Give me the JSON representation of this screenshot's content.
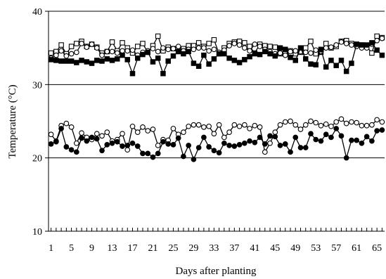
{
  "chart_data": {
    "type": "line",
    "title": "",
    "xlabel": "Days after planting",
    "ylabel": "Temperature (°C)",
    "xlim": [
      0.5,
      66.5
    ],
    "ylim": [
      10,
      40
    ],
    "x_ticks": [
      1,
      5,
      9,
      13,
      17,
      21,
      25,
      29,
      33,
      37,
      41,
      45,
      49,
      53,
      57,
      61,
      65
    ],
    "y_ticks": [
      10,
      20,
      30,
      40
    ],
    "grid": "horizontal",
    "legend": "none",
    "x": [
      1,
      2,
      3,
      4,
      5,
      6,
      7,
      8,
      9,
      10,
      11,
      12,
      13,
      14,
      15,
      16,
      17,
      18,
      19,
      20,
      21,
      22,
      23,
      24,
      25,
      26,
      27,
      28,
      29,
      30,
      31,
      32,
      33,
      34,
      35,
      36,
      37,
      38,
      39,
      40,
      41,
      42,
      43,
      44,
      45,
      46,
      47,
      48,
      49,
      50,
      51,
      52,
      53,
      54,
      55,
      56,
      57,
      58,
      59,
      60,
      61,
      62,
      63,
      64,
      65,
      66
    ],
    "series": [
      {
        "marker": "open-square",
        "values": [
          34.3,
          34.5,
          35.4,
          34.2,
          35.2,
          35.6,
          35.9,
          35.2,
          35.5,
          35.1,
          34.3,
          34.5,
          35.8,
          34.6,
          35.7,
          35.0,
          34.3,
          35.2,
          35.6,
          34.4,
          35.3,
          36.6,
          34.6,
          35.1,
          34.9,
          34.5,
          34.9,
          35.3,
          35.3,
          35.7,
          35.2,
          35.6,
          36.1,
          34.2,
          35.0,
          35.6,
          35.8,
          35.9,
          35.7,
          35.2,
          34.3,
          35.5,
          35.3,
          35.2,
          35.1,
          34.2,
          34.3,
          34.6,
          34.2,
          34.4,
          35.0,
          35.9,
          34.2,
          34.4,
          35.6,
          35.0,
          35.2,
          35.9,
          36.0,
          35.6,
          35.5,
          35.4,
          35.2,
          34.3,
          36.6,
          36.4
        ]
      },
      {
        "marker": "open-circle",
        "values": [
          33.6,
          34.0,
          34.6,
          33.9,
          34.2,
          34.4,
          35.6,
          35.1,
          35.5,
          35.0,
          34.0,
          34.5,
          34.5,
          34.3,
          34.6,
          34.6,
          34.7,
          34.0,
          34.4,
          34.6,
          34.9,
          34.5,
          35.0,
          34.8,
          34.9,
          35.2,
          34.6,
          34.8,
          34.8,
          35.0,
          35.0,
          34.6,
          34.8,
          34.4,
          34.7,
          35.3,
          35.6,
          35.4,
          35.0,
          34.6,
          35.5,
          35.2,
          34.8,
          34.5,
          34.2,
          34.3,
          34.0,
          34.5,
          34.6,
          34.5,
          34.4,
          34.3,
          34.7,
          34.5,
          35.0,
          35.1,
          35.4,
          35.8,
          35.6,
          35.4,
          35.2,
          35.0,
          35.0,
          35.5,
          36.0,
          36.3
        ]
      },
      {
        "marker": "filled-square",
        "values": [
          33.4,
          33.3,
          33.2,
          33.2,
          33.2,
          33.0,
          33.3,
          33.1,
          32.9,
          33.3,
          33.2,
          33.5,
          33.3,
          33.5,
          34.0,
          33.4,
          31.5,
          33.6,
          34.1,
          34.4,
          33.1,
          33.6,
          31.5,
          33.2,
          33.9,
          34.5,
          34.2,
          34.5,
          32.9,
          32.5,
          34.0,
          32.8,
          33.5,
          34.2,
          34.2,
          33.6,
          33.3,
          33.0,
          33.4,
          33.8,
          34.2,
          34.1,
          34.5,
          34.2,
          33.9,
          35.0,
          34.8,
          33.7,
          33.3,
          35.0,
          33.5,
          32.8,
          32.7,
          34.8,
          32.4,
          33.3,
          32.6,
          33.3,
          31.8,
          32.9,
          35.5,
          35.4,
          35.4,
          35.7,
          34.7,
          34.0
        ]
      },
      {
        "marker": "open-circle",
        "values": [
          23.2,
          22.3,
          24.4,
          24.7,
          24.2,
          22.0,
          23.4,
          22.8,
          22.5,
          23.3,
          23.0,
          23.5,
          22.3,
          22.5,
          23.3,
          21.1,
          24.3,
          23.5,
          24.2,
          23.7,
          23.9,
          21.7,
          22.5,
          22.4,
          24.0,
          23.2,
          23.5,
          24.3,
          24.5,
          24.5,
          24.2,
          24.3,
          23.3,
          24.5,
          22.8,
          23.5,
          24.5,
          24.3,
          24.5,
          24.0,
          24.4,
          24.2,
          20.8,
          22.0,
          23.5,
          24.5,
          24.9,
          25.0,
          24.5,
          23.9,
          24.5,
          25.0,
          24.8,
          24.4,
          24.6,
          24.3,
          24.9,
          25.3,
          24.7,
          24.9,
          24.8,
          24.4,
          24.4,
          24.5,
          25.2,
          24.9
        ]
      },
      {
        "marker": "filled-circle",
        "values": [
          21.9,
          22.2,
          24.0,
          21.5,
          21.1,
          20.8,
          22.7,
          22.3,
          22.8,
          22.6,
          21.0,
          21.8,
          22.0,
          22.2,
          21.6,
          21.7,
          22.0,
          21.6,
          20.6,
          20.6,
          20.1,
          20.6,
          22.2,
          21.9,
          21.8,
          22.7,
          20.2,
          21.7,
          19.8,
          21.4,
          22.8,
          21.5,
          21.0,
          20.7,
          22.0,
          21.7,
          21.6,
          21.8,
          22.0,
          22.3,
          22.1,
          22.8,
          21.9,
          23.0,
          22.9,
          21.7,
          21.9,
          20.8,
          22.8,
          21.4,
          21.4,
          23.3,
          22.5,
          22.3,
          23.2,
          22.8,
          24.0,
          23.0,
          20.0,
          22.4,
          22.4,
          22.0,
          22.9,
          22.3,
          23.7,
          23.8
        ]
      }
    ]
  }
}
